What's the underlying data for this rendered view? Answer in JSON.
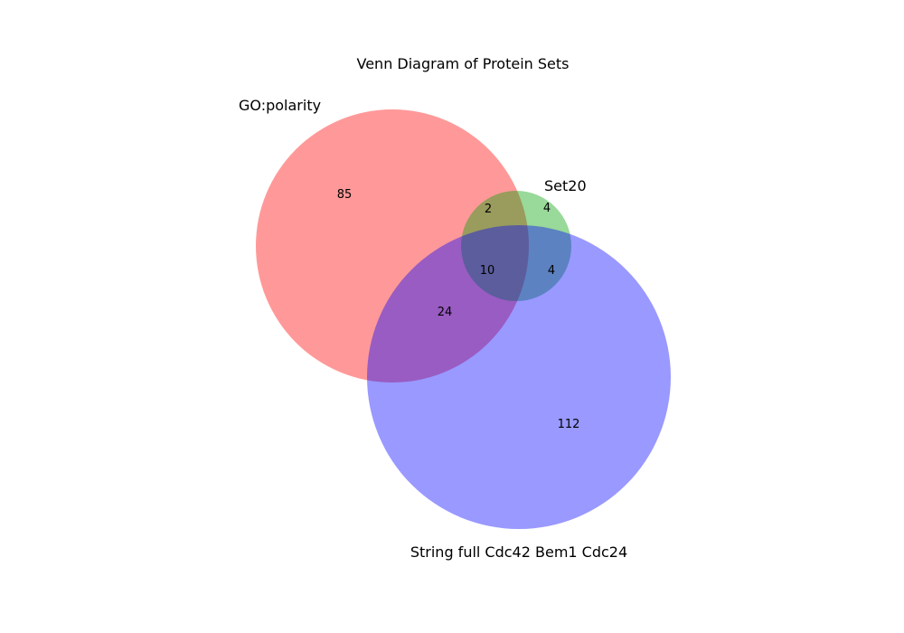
{
  "diagram": {
    "title": "Venn Diagram of Protein Sets",
    "sets": [
      {
        "id": "A",
        "name": "GO:polarity",
        "color": "#ff0000",
        "opacity": 0.4
      },
      {
        "id": "B",
        "name": "Set20",
        "color": "#00a000",
        "opacity": 0.4
      },
      {
        "id": "C",
        "name": "String full Cdc42 Bem1 Cdc24",
        "color": "#0000ff",
        "opacity": 0.4
      }
    ],
    "regions": {
      "A_only": "85",
      "B_only": "4",
      "C_only": "112",
      "A_B": "2",
      "A_C": "24",
      "B_C": "4",
      "A_B_C": "10"
    }
  },
  "chart_data": {
    "type": "venn",
    "title": "Venn Diagram of Protein Sets",
    "sets": [
      "GO:polarity",
      "Set20",
      "String full Cdc42 Bem1 Cdc24"
    ],
    "regions": {
      "GO:polarity only": 85,
      "Set20 only": 4,
      "String full Cdc42 Bem1 Cdc24 only": 112,
      "GO:polarity & Set20": 2,
      "GO:polarity & String full Cdc42 Bem1 Cdc24": 24,
      "Set20 & String full Cdc42 Bem1 Cdc24": 4,
      "GO:polarity & Set20 & String full Cdc42 Bem1 Cdc24": 10
    }
  }
}
